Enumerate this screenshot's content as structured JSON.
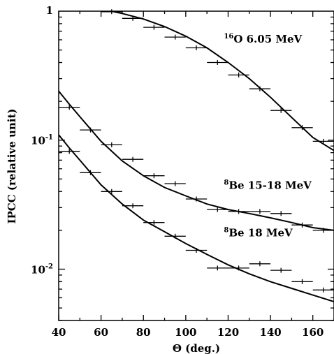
{
  "chart_data": {
    "type": "line",
    "title": "",
    "xlabel": "Θ (deg.)",
    "ylabel": "IPCC (relative unit)",
    "xlim": [
      40,
      170
    ],
    "ylim": [
      0.004,
      1
    ],
    "yscale": "log",
    "grid": false,
    "x_ticks": [
      40,
      60,
      80,
      100,
      120,
      140,
      160
    ],
    "y_ticks": [
      {
        "value": 1,
        "base": "1",
        "exp": ""
      },
      {
        "value": 0.1,
        "base": "10",
        "exp": "-1"
      },
      {
        "value": 0.01,
        "base": "10",
        "exp": "-2"
      }
    ],
    "series": [
      {
        "annotation": {
          "sup": "16",
          "text": "O 6.05 MeV",
          "x": 118,
          "y": 0.57
        },
        "curve": [
          [
            66,
            0.99
          ],
          [
            70,
            0.96
          ],
          [
            80,
            0.87
          ],
          [
            90,
            0.76
          ],
          [
            100,
            0.64
          ],
          [
            110,
            0.52
          ],
          [
            120,
            0.4
          ],
          [
            130,
            0.3
          ],
          [
            140,
            0.215
          ],
          [
            150,
            0.15
          ],
          [
            160,
            0.105
          ],
          [
            170,
            0.083
          ]
        ],
        "points": [
          [
            65,
            0.99
          ],
          [
            75,
            0.88
          ],
          [
            85,
            0.75
          ],
          [
            95,
            0.63
          ],
          [
            105,
            0.52
          ],
          [
            115,
            0.4
          ],
          [
            125,
            0.32
          ],
          [
            135,
            0.25
          ],
          [
            145,
            0.17
          ],
          [
            155,
            0.125
          ],
          [
            165,
            0.098
          ]
        ]
      },
      {
        "annotation": {
          "sup": "8",
          "text": "Be 15-18 MeV",
          "x": 118,
          "y": 0.042
        },
        "curve": [
          [
            40,
            0.24
          ],
          [
            45,
            0.19
          ],
          [
            50,
            0.152
          ],
          [
            60,
            0.098
          ],
          [
            70,
            0.069
          ],
          [
            80,
            0.053
          ],
          [
            90,
            0.043
          ],
          [
            100,
            0.037
          ],
          [
            110,
            0.032
          ],
          [
            120,
            0.029
          ],
          [
            130,
            0.027
          ],
          [
            140,
            0.025
          ],
          [
            150,
            0.023
          ],
          [
            160,
            0.021
          ],
          [
            170,
            0.02
          ]
        ],
        "points": [
          [
            45,
            0.18
          ],
          [
            55,
            0.12
          ],
          [
            65,
            0.092
          ],
          [
            75,
            0.071
          ],
          [
            85,
            0.053
          ],
          [
            95,
            0.046
          ],
          [
            105,
            0.035
          ],
          [
            115,
            0.029
          ],
          [
            125,
            0.028
          ],
          [
            135,
            0.028
          ],
          [
            145,
            0.027
          ],
          [
            155,
            0.022
          ],
          [
            165,
            0.02
          ]
        ]
      },
      {
        "annotation": {
          "sup": "8",
          "text": "Be 18 MeV",
          "x": 118,
          "y": 0.018
        },
        "curve": [
          [
            40,
            0.11
          ],
          [
            45,
            0.087
          ],
          [
            50,
            0.07
          ],
          [
            60,
            0.045
          ],
          [
            70,
            0.032
          ],
          [
            80,
            0.024
          ],
          [
            90,
            0.0195
          ],
          [
            100,
            0.0158
          ],
          [
            110,
            0.013
          ],
          [
            120,
            0.0108
          ],
          [
            130,
            0.0092
          ],
          [
            140,
            0.008
          ],
          [
            150,
            0.0071
          ],
          [
            160,
            0.0063
          ],
          [
            170,
            0.0056
          ]
        ],
        "points": [
          [
            45,
            0.082
          ],
          [
            55,
            0.056
          ],
          [
            65,
            0.04
          ],
          [
            75,
            0.031
          ],
          [
            85,
            0.023
          ],
          [
            95,
            0.018
          ],
          [
            105,
            0.014
          ],
          [
            115,
            0.0102
          ],
          [
            125,
            0.0102
          ],
          [
            135,
            0.011
          ],
          [
            145,
            0.0098
          ],
          [
            155,
            0.008
          ],
          [
            165,
            0.0069
          ]
        ]
      }
    ]
  }
}
